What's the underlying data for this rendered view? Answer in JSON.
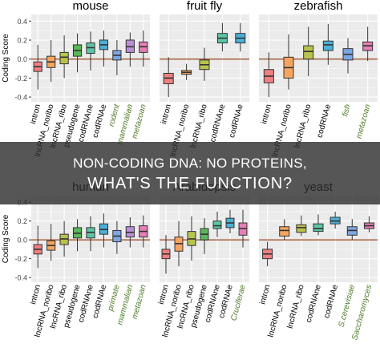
{
  "overlay": {
    "line1": "NON-CODING DNA: NO PROTEINS,",
    "line2": "WHAT'S THE FUNCTION?"
  },
  "colors": {
    "panel_bg": "#ebebeb",
    "grid": "#ffffff",
    "zero_line": "#a0522d",
    "box_outline": "#333333",
    "green_label": "#4f7a28",
    "banner": "#2c2c2c"
  },
  "chart_data": [
    {
      "type": "box",
      "title": "mouse",
      "ylabel": "Coding Score",
      "ylim": [
        -0.45,
        0.47
      ],
      "yticks": [
        -0.4,
        -0.2,
        0.0,
        0.2,
        0.4
      ],
      "yticklabels": [
        "-0.4",
        "-0.2",
        "0.0",
        "0.2",
        "0.4"
      ],
      "categories": [
        {
          "label": "intron",
          "label_color": "#000000",
          "fill": "#f08080",
          "whisker_low": -0.32,
          "q1": -0.13,
          "median": -0.08,
          "q3": -0.03,
          "whisker_high": 0.15
        },
        {
          "label": "lncRNA_noribo",
          "label_color": "#000000",
          "fill": "#f5a560",
          "whisker_low": -0.24,
          "q1": -0.09,
          "median": -0.03,
          "q3": 0.03,
          "whisker_high": 0.2
        },
        {
          "label": "lncRNA_ribo",
          "label_color": "#000000",
          "fill": "#b8c44c",
          "whisker_low": -0.2,
          "q1": -0.05,
          "median": 0.02,
          "q3": 0.07,
          "whisker_high": 0.25
        },
        {
          "label": "pseudogene",
          "label_color": "#000000",
          "fill": "#5ab85a",
          "whisker_low": -0.14,
          "q1": 0.03,
          "median": 0.09,
          "q3": 0.15,
          "whisker_high": 0.27
        },
        {
          "label": "codRNAne",
          "label_color": "#000000",
          "fill": "#5cc6a6",
          "whisker_low": -0.12,
          "q1": 0.06,
          "median": 0.12,
          "q3": 0.17,
          "whisker_high": 0.29
        },
        {
          "label": "codRNAe",
          "label_color": "#000000",
          "fill": "#4bb0d6",
          "whisker_low": -0.08,
          "q1": 0.1,
          "median": 0.15,
          "q3": 0.2,
          "whisker_high": 0.3
        },
        {
          "label": "rodent",
          "label_color": "#4f7a28",
          "fill": "#7da7e3",
          "whisker_low": -0.17,
          "q1": -0.01,
          "median": 0.04,
          "q3": 0.09,
          "whisker_high": 0.2
        },
        {
          "label": "mammalian",
          "label_color": "#4f7a28",
          "fill": "#bd8ed8",
          "whisker_low": -0.08,
          "q1": 0.07,
          "median": 0.13,
          "q3": 0.2,
          "whisker_high": 0.28
        },
        {
          "label": "metazoan",
          "label_color": "#4f7a28",
          "fill": "#e67fb6",
          "whisker_low": -0.08,
          "q1": 0.07,
          "median": 0.13,
          "q3": 0.18,
          "whisker_high": 0.3
        }
      ]
    },
    {
      "type": "box",
      "title": "fruit fly",
      "ylabel": "",
      "ylim": [
        -0.45,
        0.47
      ],
      "yticks": [
        -0.4,
        -0.2,
        0.0,
        0.2,
        0.4
      ],
      "yticklabels": [],
      "categories": [
        {
          "label": "intron",
          "label_color": "#000000",
          "fill": "#f08080",
          "whisker_low": -0.4,
          "q1": -0.26,
          "median": -0.2,
          "q3": -0.15,
          "whisker_high": 0.02
        },
        {
          "label": "lncRNA_noribo",
          "label_color": "#000000",
          "fill": "#f5a560",
          "whisker_low": -0.22,
          "q1": -0.16,
          "median": -0.14,
          "q3": -0.12,
          "whisker_high": -0.05
        },
        {
          "label": "lncRNA_ribo",
          "label_color": "#000000",
          "fill": "#b8c44c",
          "whisker_low": -0.23,
          "q1": -0.11,
          "median": -0.06,
          "q3": -0.01,
          "whisker_high": 0.12
        },
        {
          "label": "codRNAne",
          "label_color": "#000000",
          "fill": "#5cc6a6",
          "whisker_low": 0.08,
          "q1": 0.17,
          "median": 0.22,
          "q3": 0.27,
          "whisker_high": 0.38
        },
        {
          "label": "codRNAe",
          "label_color": "#000000",
          "fill": "#4bb0d6",
          "whisker_low": 0.08,
          "q1": 0.17,
          "median": 0.22,
          "q3": 0.27,
          "whisker_high": 0.38
        }
      ]
    },
    {
      "type": "box",
      "title": "zebrafish",
      "ylabel": "",
      "ylim": [
        -0.45,
        0.47
      ],
      "yticks": [
        -0.4,
        -0.2,
        0.0,
        0.2,
        0.4
      ],
      "yticklabels": [],
      "categories": [
        {
          "label": "intron",
          "label_color": "#000000",
          "fill": "#f08080",
          "whisker_low": -0.4,
          "q1": -0.25,
          "median": -0.18,
          "q3": -0.11,
          "whisker_high": 0.07
        },
        {
          "label": "lncRNA_noribo",
          "label_color": "#000000",
          "fill": "#f5a560",
          "whisker_low": -0.32,
          "q1": -0.2,
          "median": -0.09,
          "q3": 0.02,
          "whisker_high": 0.26
        },
        {
          "label": "lncRNA_ribo",
          "label_color": "#000000",
          "fill": "#b8c44c",
          "whisker_low": -0.18,
          "q1": 0.0,
          "median": 0.08,
          "q3": 0.14,
          "whisker_high": 0.34
        },
        {
          "label": "codRNAe",
          "label_color": "#000000",
          "fill": "#4bb0d6",
          "whisker_low": -0.06,
          "q1": 0.09,
          "median": 0.15,
          "q3": 0.19,
          "whisker_high": 0.37
        },
        {
          "label": "fish",
          "label_color": "#4f7a28",
          "fill": "#7da7e3",
          "whisker_low": -0.15,
          "q1": -0.01,
          "median": 0.05,
          "q3": 0.11,
          "whisker_high": 0.22
        },
        {
          "label": "metazoan",
          "label_color": "#4f7a28",
          "fill": "#e67fb6",
          "whisker_low": -0.02,
          "q1": 0.09,
          "median": 0.14,
          "q3": 0.18,
          "whisker_high": 0.34
        }
      ]
    },
    {
      "type": "box",
      "title": "human",
      "ylabel": "Coding Score",
      "ylim": [
        -0.45,
        0.47
      ],
      "yticks": [
        -0.4,
        -0.2,
        0.0,
        0.2,
        0.4
      ],
      "yticklabels": [
        "-0.4",
        "-0.2",
        "0.0",
        "0.2",
        "0.4"
      ],
      "categories": [
        {
          "label": "intron",
          "label_color": "#000000",
          "fill": "#f08080",
          "whisker_low": -0.3,
          "q1": -0.15,
          "median": -0.1,
          "q3": -0.05,
          "whisker_high": 0.15
        },
        {
          "label": "lncRNA_noribo",
          "label_color": "#000000",
          "fill": "#f5a560",
          "whisker_low": -0.22,
          "q1": -0.11,
          "median": -0.06,
          "q3": -0.01,
          "whisker_high": 0.17
        },
        {
          "label": "lncRNA_ribo",
          "label_color": "#000000",
          "fill": "#b8c44c",
          "whisker_low": -0.18,
          "q1": -0.05,
          "median": 0.01,
          "q3": 0.06,
          "whisker_high": 0.2
        },
        {
          "label": "pseudogene",
          "label_color": "#000000",
          "fill": "#5ab85a",
          "whisker_low": -0.12,
          "q1": 0.02,
          "median": 0.07,
          "q3": 0.13,
          "whisker_high": 0.22
        },
        {
          "label": "codRNAne",
          "label_color": "#000000",
          "fill": "#5cc6a6",
          "whisker_low": -0.12,
          "q1": 0.02,
          "median": 0.08,
          "q3": 0.13,
          "whisker_high": 0.25
        },
        {
          "label": "codRNAe",
          "label_color": "#000000",
          "fill": "#4bb0d6",
          "whisker_low": -0.08,
          "q1": 0.06,
          "median": 0.11,
          "q3": 0.17,
          "whisker_high": 0.28
        },
        {
          "label": "primate",
          "label_color": "#4f7a28",
          "fill": "#7da7e3",
          "whisker_low": -0.15,
          "q1": -0.02,
          "median": 0.04,
          "q3": 0.1,
          "whisker_high": 0.2
        },
        {
          "label": "mammalian",
          "label_color": "#4f7a28",
          "fill": "#bd8ed8",
          "whisker_low": -0.08,
          "q1": 0.03,
          "median": 0.08,
          "q3": 0.14,
          "whisker_high": 0.24
        },
        {
          "label": "metazoan",
          "label_color": "#4f7a28",
          "fill": "#e67fb6",
          "whisker_low": -0.08,
          "q1": 0.03,
          "median": 0.09,
          "q3": 0.15,
          "whisker_high": 0.26
        }
      ]
    },
    {
      "type": "box",
      "title": "Arabidopsis",
      "ylabel": "",
      "ylim": [
        -0.45,
        0.47
      ],
      "yticks": [
        -0.4,
        -0.2,
        0.0,
        0.2,
        0.4
      ],
      "yticklabels": [],
      "categories": [
        {
          "label": "intron",
          "label_color": "#000000",
          "fill": "#f08080",
          "whisker_low": -0.36,
          "q1": -0.2,
          "median": -0.15,
          "q3": -0.1,
          "whisker_high": 0.05
        },
        {
          "label": "lncRNA_noribo",
          "label_color": "#000000",
          "fill": "#f5a560",
          "whisker_low": -0.28,
          "q1": -0.12,
          "median": -0.04,
          "q3": 0.03,
          "whisker_high": 0.2
        },
        {
          "label": "lncRNA_ribo",
          "label_color": "#000000",
          "fill": "#b8c44c",
          "whisker_low": -0.22,
          "q1": -0.06,
          "median": 0.01,
          "q3": 0.09,
          "whisker_high": 0.25
        },
        {
          "label": "pseudogene",
          "label_color": "#000000",
          "fill": "#5ab85a",
          "whisker_low": -0.15,
          "q1": 0.0,
          "median": 0.06,
          "q3": 0.12,
          "whisker_high": 0.23
        },
        {
          "label": "codRNAne",
          "label_color": "#000000",
          "fill": "#5cc6a6",
          "whisker_low": 0.03,
          "q1": 0.12,
          "median": 0.15,
          "q3": 0.2,
          "whisker_high": 0.3
        },
        {
          "label": "codRNAe",
          "label_color": "#000000",
          "fill": "#4bb0d6",
          "whisker_low": 0.07,
          "q1": 0.13,
          "median": 0.18,
          "q3": 0.23,
          "whisker_high": 0.32
        },
        {
          "label": "Cruciferae",
          "label_color": "#4f7a28",
          "fill": "#e67fb6",
          "whisker_low": -0.08,
          "q1": 0.05,
          "median": 0.12,
          "q3": 0.18,
          "whisker_high": 0.32
        }
      ]
    },
    {
      "type": "box",
      "title": "yeast",
      "ylabel": "",
      "ylim": [
        -0.45,
        0.47
      ],
      "yticks": [
        -0.4,
        -0.2,
        0.0,
        0.2,
        0.4
      ],
      "yticklabels": [],
      "categories": [
        {
          "label": "intron",
          "label_color": "#000000",
          "fill": "#f08080",
          "whisker_low": -0.28,
          "q1": -0.2,
          "median": -0.15,
          "q3": -0.1,
          "whisker_high": -0.02
        },
        {
          "label": "lncRNA_noribo",
          "label_color": "#000000",
          "fill": "#f5a560",
          "whisker_low": 0.0,
          "q1": 0.04,
          "median": 0.1,
          "q3": 0.14,
          "whisker_high": 0.22
        },
        {
          "label": "lncRNA_ribo",
          "label_color": "#000000",
          "fill": "#b8c44c",
          "whisker_low": 0.04,
          "q1": 0.08,
          "median": 0.13,
          "q3": 0.16,
          "whisker_high": 0.26
        },
        {
          "label": "codRNAne",
          "label_color": "#000000",
          "fill": "#5cc6a6",
          "whisker_low": 0.05,
          "q1": 0.09,
          "median": 0.12,
          "q3": 0.17,
          "whisker_high": 0.27
        },
        {
          "label": "codRNAe",
          "label_color": "#000000",
          "fill": "#4bb0d6",
          "whisker_low": 0.12,
          "q1": 0.17,
          "median": 0.2,
          "q3": 0.24,
          "whisker_high": 0.3
        },
        {
          "label": "S.cerevisiae",
          "label_color": "#4f7a28",
          "fill": "#7da7e3",
          "whisker_low": 0.0,
          "q1": 0.05,
          "median": 0.1,
          "q3": 0.14,
          "whisker_high": 0.22
        },
        {
          "label": "Saccharomyces",
          "label_color": "#4f7a28",
          "fill": "#e67fb6",
          "whisker_low": 0.08,
          "q1": 0.12,
          "median": 0.15,
          "q3": 0.18,
          "whisker_high": 0.25
        }
      ]
    }
  ]
}
